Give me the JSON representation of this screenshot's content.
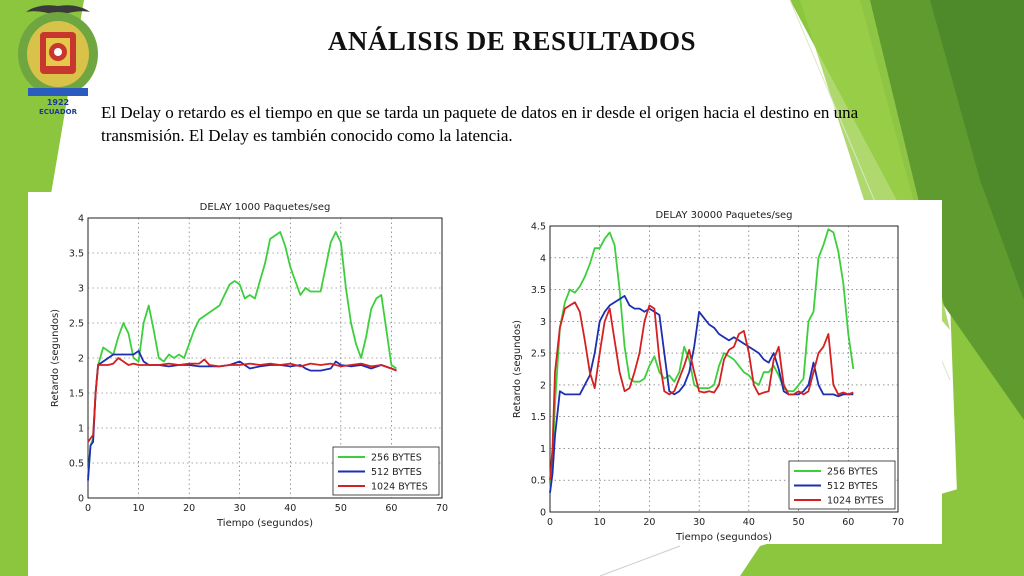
{
  "slide": {
    "title": "ANÁLISIS DE RESULTADOS",
    "body": "El Delay o retardo es el tiempo en que se tarda un paquete de datos en ir desde el origen hacia el destino en una transmisión.  El Delay es también conocido como la latencia.",
    "emblem_year": "1922",
    "emblem_country": "ECUADOR",
    "colors": {
      "green_light": "#8cc63f",
      "green_mid": "#6aa832",
      "green_dark": "#4e8a2a"
    }
  },
  "chart_data": [
    {
      "type": "line",
      "title": "DELAY  1000 Paquetes/seg",
      "xlabel": "Tiempo (segundos)",
      "ylabel": "Retardo (segundos)",
      "xlim": [
        0,
        70
      ],
      "ylim": [
        0,
        4
      ],
      "xticks": [
        0,
        10,
        20,
        30,
        40,
        50,
        60,
        70
      ],
      "yticks": [
        0,
        0.5,
        1,
        1.5,
        2,
        2.5,
        3,
        3.5,
        4
      ],
      "grid": true,
      "legend_position": "bottom-right",
      "series": [
        {
          "name": "256 BYTES",
          "color": "#3ccf3c",
          "x": [
            0,
            0.5,
            1,
            1.5,
            2,
            3,
            4,
            5,
            6,
            7,
            8,
            9,
            10,
            11,
            12,
            13,
            14,
            15,
            16,
            17,
            18,
            19,
            20,
            21,
            22,
            24,
            26,
            27,
            28,
            29,
            30,
            31,
            32,
            33,
            34,
            35,
            36,
            37,
            38,
            39,
            40,
            41,
            42,
            43,
            44,
            45,
            46,
            47,
            48,
            49,
            50,
            51,
            52,
            53,
            54,
            55,
            56,
            57,
            58,
            59,
            60,
            61
          ],
          "y": [
            0.3,
            0.75,
            0.85,
            1.5,
            1.9,
            2.15,
            2.1,
            2.05,
            2.3,
            2.5,
            2.35,
            2.0,
            1.95,
            2.5,
            2.75,
            2.4,
            2.0,
            1.95,
            2.05,
            2.0,
            2.05,
            2.0,
            2.2,
            2.4,
            2.55,
            2.65,
            2.75,
            2.9,
            3.05,
            3.1,
            3.05,
            2.85,
            2.9,
            2.85,
            3.1,
            3.35,
            3.7,
            3.75,
            3.8,
            3.6,
            3.3,
            3.1,
            2.9,
            3.0,
            2.95,
            2.95,
            2.95,
            3.3,
            3.65,
            3.8,
            3.65,
            3.0,
            2.5,
            2.2,
            2.0,
            2.3,
            2.7,
            2.85,
            2.9,
            2.4,
            1.9,
            1.85
          ]
        },
        {
          "name": "512 BYTES",
          "color": "#1c2fb0",
          "x": [
            0,
            0.5,
            1,
            1.5,
            2,
            3,
            4,
            5,
            6,
            7,
            8,
            9,
            10,
            11,
            12,
            14,
            16,
            18,
            20,
            22,
            24,
            26,
            28,
            30,
            32,
            34,
            36,
            38,
            40,
            42,
            43,
            44,
            46,
            48,
            49,
            50,
            52,
            54,
            56,
            58,
            60,
            61
          ],
          "y": [
            0.25,
            0.75,
            0.8,
            1.5,
            1.9,
            1.95,
            2.0,
            2.05,
            2.05,
            2.05,
            2.05,
            2.05,
            2.1,
            1.95,
            1.9,
            1.9,
            1.88,
            1.9,
            1.9,
            1.88,
            1.88,
            1.88,
            1.9,
            1.95,
            1.85,
            1.88,
            1.9,
            1.9,
            1.88,
            1.9,
            1.85,
            1.82,
            1.82,
            1.85,
            1.95,
            1.9,
            1.88,
            1.9,
            1.85,
            1.9,
            1.85,
            1.82
          ]
        },
        {
          "name": "1024 BYTES",
          "color": "#d42020",
          "x": [
            0,
            0.5,
            1,
            1.5,
            2,
            3,
            4,
            5,
            6,
            7,
            8,
            9,
            10,
            12,
            14,
            16,
            18,
            20,
            22,
            23,
            24,
            26,
            28,
            30,
            32,
            34,
            36,
            38,
            40,
            42,
            44,
            46,
            48,
            50,
            52,
            54,
            56,
            58,
            60,
            61
          ],
          "y": [
            0.8,
            0.85,
            0.9,
            1.5,
            1.9,
            1.9,
            1.9,
            1.92,
            2.0,
            1.95,
            1.9,
            1.92,
            1.9,
            1.9,
            1.9,
            1.92,
            1.9,
            1.92,
            1.92,
            1.98,
            1.9,
            1.88,
            1.9,
            1.9,
            1.92,
            1.9,
            1.92,
            1.9,
            1.92,
            1.88,
            1.92,
            1.9,
            1.92,
            1.88,
            1.9,
            1.92,
            1.88,
            1.9,
            1.85,
            1.82
          ]
        }
      ]
    },
    {
      "type": "line",
      "title": "DELAY  30000 Paquetes/seg",
      "xlabel": "Tiempo (segundos)",
      "ylabel": "Retardo (segundos)",
      "xlim": [
        0,
        70
      ],
      "ylim": [
        0,
        4.5
      ],
      "xticks": [
        0,
        10,
        20,
        30,
        40,
        50,
        60,
        70
      ],
      "yticks": [
        0,
        0.5,
        1,
        1.5,
        2,
        2.5,
        3,
        3.5,
        4,
        4.5
      ],
      "grid": true,
      "legend_position": "bottom-right",
      "series": [
        {
          "name": "256 BYTES",
          "color": "#3ccf3c",
          "x": [
            0,
            0.5,
            1,
            2,
            3,
            4,
            5,
            6,
            7,
            8,
            9,
            10,
            11,
            12,
            13,
            14,
            15,
            16,
            17,
            18,
            19,
            20,
            21,
            22,
            23,
            24,
            25,
            26,
            27,
            28,
            29,
            30,
            31,
            32,
            33,
            34,
            35,
            36,
            37,
            38,
            39,
            40,
            41,
            42,
            43,
            44,
            45,
            46,
            47,
            48,
            49,
            50,
            51,
            52,
            53,
            54,
            55,
            56,
            57,
            58,
            59,
            60,
            61
          ],
          "y": [
            0.3,
            0.8,
            1.7,
            2.9,
            3.3,
            3.5,
            3.45,
            3.55,
            3.7,
            3.9,
            4.15,
            4.15,
            4.3,
            4.4,
            4.2,
            3.5,
            2.6,
            2.1,
            2.05,
            2.05,
            2.1,
            2.3,
            2.45,
            2.2,
            2.1,
            2.15,
            2.05,
            2.2,
            2.6,
            2.4,
            2.0,
            1.95,
            1.95,
            1.95,
            2.0,
            2.3,
            2.5,
            2.45,
            2.4,
            2.3,
            2.2,
            2.15,
            2.05,
            2.0,
            2.2,
            2.2,
            2.3,
            2.15,
            1.95,
            1.9,
            1.9,
            2.0,
            2.1,
            3.0,
            3.15,
            4.0,
            4.2,
            4.45,
            4.4,
            4.1,
            3.6,
            2.8,
            2.25
          ]
        },
        {
          "name": "512 BYTES",
          "color": "#1c2fb0",
          "x": [
            0,
            0.5,
            1,
            2,
            3,
            4,
            5,
            6,
            7,
            8,
            9,
            10,
            11,
            12,
            13,
            14,
            15,
            16,
            17,
            18,
            19,
            20,
            21,
            22,
            23,
            24,
            25,
            26,
            27,
            28,
            29,
            30,
            31,
            32,
            33,
            34,
            35,
            36,
            37,
            38,
            39,
            40,
            41,
            42,
            43,
            44,
            45,
            46,
            47,
            48,
            49,
            50,
            51,
            52,
            53,
            54,
            55,
            56,
            57,
            58,
            59,
            60,
            61
          ],
          "y": [
            0.3,
            0.6,
            1.2,
            1.9,
            1.85,
            1.85,
            1.85,
            1.85,
            2.0,
            2.15,
            2.5,
            3.0,
            3.15,
            3.25,
            3.3,
            3.35,
            3.4,
            3.25,
            3.2,
            3.2,
            3.15,
            3.2,
            3.15,
            3.1,
            2.5,
            1.9,
            1.85,
            1.9,
            2.0,
            2.2,
            2.6,
            3.15,
            3.05,
            2.95,
            2.9,
            2.8,
            2.75,
            2.7,
            2.75,
            2.7,
            2.65,
            2.6,
            2.55,
            2.5,
            2.4,
            2.35,
            2.5,
            2.25,
            1.9,
            1.85,
            1.85,
            1.85,
            1.9,
            2.0,
            2.35,
            2.0,
            1.85,
            1.85,
            1.85,
            1.82,
            1.85,
            1.85,
            1.85
          ]
        },
        {
          "name": "1024 BYTES",
          "color": "#d42020",
          "x": [
            0,
            0.5,
            1,
            2,
            3,
            4,
            5,
            6,
            7,
            8,
            9,
            10,
            11,
            12,
            13,
            14,
            15,
            16,
            17,
            18,
            19,
            20,
            21,
            22,
            23,
            24,
            25,
            26,
            27,
            28,
            29,
            30,
            31,
            32,
            33,
            34,
            35,
            36,
            37,
            38,
            39,
            40,
            41,
            42,
            43,
            44,
            45,
            46,
            47,
            48,
            49,
            50,
            51,
            52,
            53,
            54,
            55,
            56,
            57,
            58,
            59,
            60,
            61
          ],
          "y": [
            0.5,
            1.0,
            2.2,
            2.9,
            3.2,
            3.25,
            3.3,
            3.15,
            2.7,
            2.2,
            1.95,
            2.5,
            3.0,
            3.2,
            2.7,
            2.2,
            1.9,
            1.95,
            2.2,
            2.5,
            3.0,
            3.25,
            3.2,
            2.4,
            1.9,
            1.85,
            1.9,
            2.1,
            2.3,
            2.55,
            2.2,
            1.9,
            1.88,
            1.9,
            1.88,
            2.0,
            2.4,
            2.55,
            2.6,
            2.8,
            2.85,
            2.5,
            2.0,
            1.85,
            1.88,
            1.9,
            2.4,
            2.6,
            2.0,
            1.85,
            1.85,
            1.9,
            1.85,
            1.9,
            2.2,
            2.5,
            2.6,
            2.8,
            2.0,
            1.85,
            1.88,
            1.85,
            1.88
          ]
        }
      ]
    }
  ]
}
